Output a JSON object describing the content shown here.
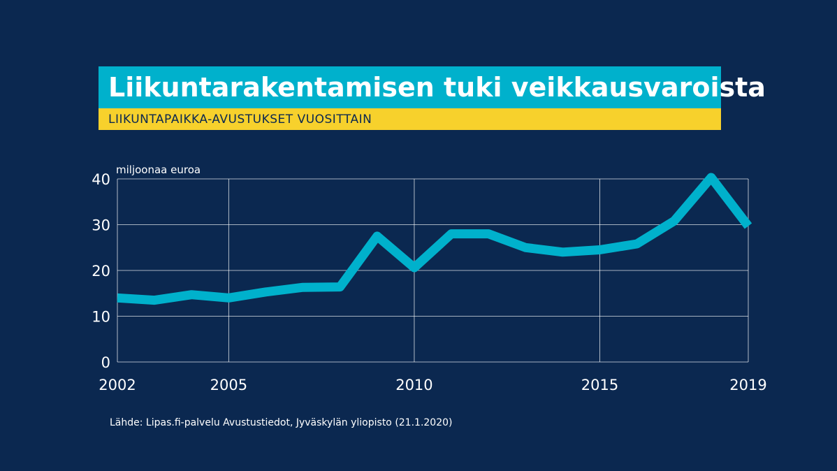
{
  "title": "Liikuntarakentamisen tuki veikkausvaroista",
  "subtitle": "LIIKUNTAPAIKKA-AVUSTUKSET VUOSITTAIN",
  "source": "Lähde: Lipas.fi-palvelu Avustustiedot, Jyväskylän yliopisto (21.1.2020)",
  "colors": {
    "background": "#0b2850",
    "title_bg": "#00b1cc",
    "subtitle_bg": "#f7d12c",
    "line": "#00b1cc",
    "grid": "#ffffff"
  },
  "chart_data": {
    "type": "line",
    "ylabel": "miljoonaa euroa",
    "xlim": [
      2002,
      2019
    ],
    "ylim": [
      0,
      40
    ],
    "yticks": [
      0,
      10,
      20,
      30,
      40
    ],
    "xtick_labels": [
      "2002",
      "2005",
      "2010",
      "2015",
      "2019"
    ],
    "xticks": [
      2002,
      2005,
      2010,
      2015,
      2019
    ],
    "grid": true,
    "series": [
      {
        "x": [
          2002,
          2003,
          2004,
          2005,
          2006,
          2007,
          2008,
          2009,
          2010,
          2011,
          2012,
          2013,
          2014,
          2015,
          2016,
          2017,
          2018,
          2019
        ],
        "values": [
          14.0,
          13.5,
          14.7,
          14.0,
          15.3,
          16.3,
          16.4,
          27.5,
          20.6,
          28.0,
          28.0,
          25.0,
          24.0,
          24.5,
          25.8,
          30.8,
          40.3,
          29.7
        ]
      }
    ]
  }
}
